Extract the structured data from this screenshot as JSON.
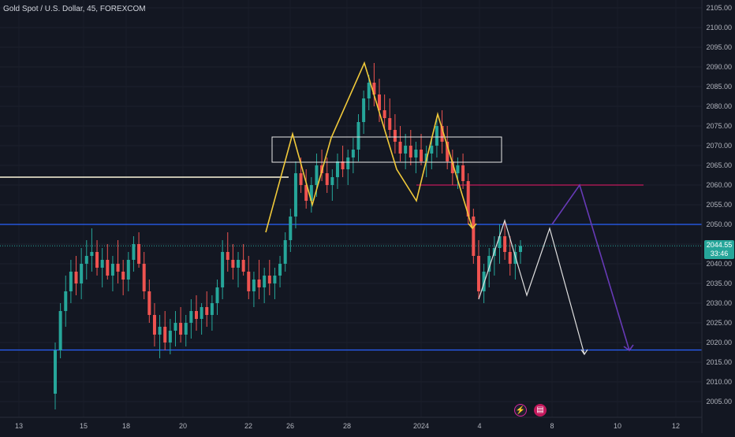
{
  "header": {
    "symbol_title": "Gold Spot / U.S. Dollar, 45, FOREXCOM"
  },
  "price_tag": {
    "price": "2044.55",
    "countdown": "33:46",
    "color": "#26a69a"
  },
  "colors": {
    "background": "#131722",
    "up_candle": "#26a69a",
    "down_candle": "#ef5350",
    "blue_line": "#2962ff",
    "red_line": "#c2185b",
    "purple_path": "#673ab7",
    "yellow_path": "#f0c93a",
    "white_path": "#e0e0e0"
  },
  "badges": {
    "bolt_icon": "lightning-bolt-icon",
    "flag_icon": "us-flag-icon"
  },
  "chart_data": {
    "type": "candlestick",
    "ylim": [
      2001,
      2107
    ],
    "price_ticks": [
      2105,
      2100,
      2095,
      2090,
      2085,
      2080,
      2075,
      2070,
      2065,
      2060,
      2055,
      2050,
      2045,
      2040,
      2035,
      2030,
      2025,
      2020,
      2015,
      2010,
      2005
    ],
    "date_ticks": [
      "13",
      "15",
      "18",
      "20",
      "22",
      "26",
      "28",
      "2024",
      "4",
      "8",
      "10",
      "12"
    ],
    "last_price": 2044.55,
    "horizontal_levels": [
      {
        "name": "white",
        "price": 2062,
        "from": "start",
        "to": "26"
      },
      {
        "name": "blue-upper",
        "price": 2050,
        "from": "start",
        "to": "end"
      },
      {
        "name": "blue-lower",
        "price": 2018.1,
        "from": "start",
        "to": "end"
      },
      {
        "name": "red",
        "price": 2060,
        "from": "2024",
        "to": "10"
      }
    ],
    "rectangle": {
      "price_top": 2072.2,
      "price_bottom": 2065.8,
      "from": "24",
      "to": "4"
    },
    "yellow_path_prices": [
      2048,
      2073,
      2055,
      2072,
      2091,
      2064,
      2056,
      2078,
      2049
    ],
    "white_path_prices": [
      2031,
      2051,
      2032,
      2049,
      2017
    ],
    "purple_path_prices": [
      2050,
      2060,
      2018
    ],
    "candles": [
      [
        2007,
        2020,
        2003,
        2018
      ],
      [
        2018,
        2030,
        2016,
        2028
      ],
      [
        2028,
        2037,
        2024,
        2033
      ],
      [
        2033,
        2041,
        2030,
        2038
      ],
      [
        2038,
        2042,
        2032,
        2035
      ],
      [
        2035,
        2044,
        2031,
        2040
      ],
      [
        2040,
        2046,
        2036,
        2042
      ],
      [
        2042,
        2049,
        2038,
        2043
      ],
      [
        2043,
        2046,
        2037,
        2039
      ],
      [
        2039,
        2044,
        2034,
        2041
      ],
      [
        2041,
        2045,
        2036,
        2037
      ],
      [
        2037,
        2042,
        2033,
        2040
      ],
      [
        2040,
        2046,
        2035,
        2038
      ],
      [
        2038,
        2041,
        2032,
        2036
      ],
      [
        2036,
        2043,
        2033,
        2041
      ],
      [
        2041,
        2047,
        2038,
        2045
      ],
      [
        2045,
        2048,
        2039,
        2040
      ],
      [
        2040,
        2043,
        2031,
        2033
      ],
      [
        2033,
        2036,
        2025,
        2027
      ],
      [
        2027,
        2030,
        2019,
        2022
      ],
      [
        2022,
        2027,
        2016,
        2024
      ],
      [
        2024,
        2028,
        2018,
        2020
      ],
      [
        2020,
        2026,
        2017,
        2023
      ],
      [
        2023,
        2028,
        2019,
        2025
      ],
      [
        2025,
        2029,
        2020,
        2022
      ],
      [
        2022,
        2027,
        2019,
        2025
      ],
      [
        2025,
        2031,
        2021,
        2028
      ],
      [
        2028,
        2032,
        2023,
        2026
      ],
      [
        2026,
        2030,
        2022,
        2029
      ],
      [
        2029,
        2033,
        2024,
        2027
      ],
      [
        2027,
        2032,
        2023,
        2030
      ],
      [
        2030,
        2036,
        2027,
        2034
      ],
      [
        2034,
        2046,
        2031,
        2043
      ],
      [
        2043,
        2048,
        2038,
        2041
      ],
      [
        2041,
        2045,
        2036,
        2039
      ],
      [
        2039,
        2043,
        2034,
        2041
      ],
      [
        2041,
        2045,
        2037,
        2038
      ],
      [
        2038,
        2042,
        2031,
        2033
      ],
      [
        2033,
        2038,
        2029,
        2036
      ],
      [
        2036,
        2041,
        2031,
        2034
      ],
      [
        2034,
        2039,
        2030,
        2037
      ],
      [
        2037,
        2041,
        2032,
        2035
      ],
      [
        2035,
        2039,
        2031,
        2037
      ],
      [
        2037,
        2042,
        2034,
        2040
      ],
      [
        2040,
        2048,
        2038,
        2046
      ],
      [
        2046,
        2054,
        2043,
        2052
      ],
      [
        2052,
        2066,
        2049,
        2063
      ],
      [
        2063,
        2067,
        2058,
        2060
      ],
      [
        2060,
        2064,
        2054,
        2056
      ],
      [
        2056,
        2062,
        2053,
        2060
      ],
      [
        2060,
        2068,
        2057,
        2065
      ],
      [
        2065,
        2069,
        2061,
        2063
      ],
      [
        2063,
        2067,
        2058,
        2060
      ],
      [
        2060,
        2064,
        2056,
        2062
      ],
      [
        2062,
        2068,
        2059,
        2066
      ],
      [
        2066,
        2070,
        2062,
        2064
      ],
      [
        2064,
        2069,
        2060,
        2067
      ],
      [
        2067,
        2072,
        2063,
        2069
      ],
      [
        2069,
        2078,
        2066,
        2076
      ],
      [
        2076,
        2084,
        2073,
        2082
      ],
      [
        2082,
        2088,
        2079,
        2086
      ],
      [
        2086,
        2091,
        2080,
        2083
      ],
      [
        2083,
        2087,
        2076,
        2079
      ],
      [
        2079,
        2083,
        2074,
        2077
      ],
      [
        2077,
        2082,
        2072,
        2074
      ],
      [
        2074,
        2078,
        2068,
        2071
      ],
      [
        2071,
        2075,
        2066,
        2068
      ],
      [
        2068,
        2073,
        2064,
        2070
      ],
      [
        2070,
        2074,
        2065,
        2067
      ],
      [
        2067,
        2071,
        2063,
        2069
      ],
      [
        2069,
        2073,
        2065,
        2066
      ],
      [
        2066,
        2070,
        2062,
        2068
      ],
      [
        2068,
        2072,
        2064,
        2070
      ],
      [
        2070,
        2077,
        2067,
        2075
      ],
      [
        2075,
        2079,
        2068,
        2071
      ],
      [
        2071,
        2075,
        2064,
        2066
      ],
      [
        2066,
        2069,
        2060,
        2063
      ],
      [
        2063,
        2067,
        2059,
        2065
      ],
      [
        2065,
        2068,
        2059,
        2061
      ],
      [
        2061,
        2063,
        2050,
        2052
      ],
      [
        2052,
        2054,
        2040,
        2042
      ],
      [
        2042,
        2046,
        2031,
        2033
      ],
      [
        2033,
        2040,
        2030,
        2038
      ],
      [
        2038,
        2044,
        2034,
        2042
      ],
      [
        2042,
        2047,
        2037,
        2044
      ],
      [
        2044,
        2050,
        2040,
        2047
      ],
      [
        2047,
        2051,
        2041,
        2043
      ],
      [
        2043,
        2047,
        2037,
        2040
      ],
      [
        2040,
        2045,
        2036,
        2043
      ],
      [
        2043,
        2046,
        2040,
        2044.55
      ]
    ]
  }
}
